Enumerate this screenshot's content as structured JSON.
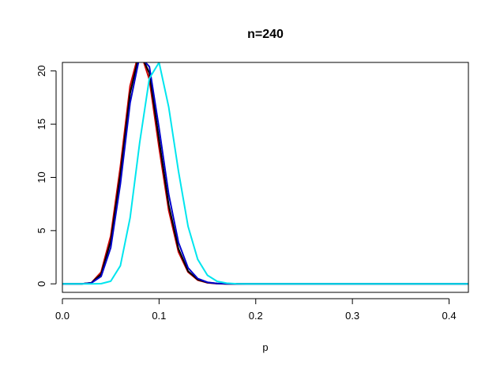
{
  "chart_data": {
    "type": "line",
    "title": "n=240",
    "xlabel": "p",
    "ylabel": "",
    "xlim": [
      0,
      0.42
    ],
    "ylim": [
      -0.8,
      20.8
    ],
    "xticks": [
      0.0,
      0.1,
      0.2,
      0.3,
      0.4
    ],
    "xtick_labels": [
      "0.0",
      "0.1",
      "0.2",
      "0.3",
      "0.4"
    ],
    "yticks": [
      0,
      5,
      10,
      15,
      20
    ],
    "ytick_labels": [
      "0",
      "5",
      "10",
      "15",
      "20"
    ],
    "grid": false,
    "legend": "none",
    "x": [
      0.0,
      0.01,
      0.02,
      0.03,
      0.04,
      0.05,
      0.06,
      0.07,
      0.08,
      0.09,
      0.1,
      0.11,
      0.12,
      0.13,
      0.14,
      0.15,
      0.16,
      0.17,
      0.18,
      0.19,
      0.2,
      0.25,
      0.3,
      0.35,
      0.42
    ],
    "series": [
      {
        "color": "#cc0000",
        "values": [
          0,
          0,
          0,
          0.1,
          1.1,
          4.5,
          11.0,
          18.6,
          22.0,
          19.2,
          12.8,
          6.9,
          3.0,
          1.1,
          0.35,
          0.1,
          0.02,
          0,
          0,
          0,
          0,
          0,
          0,
          0,
          0
        ]
      },
      {
        "color": "#000000",
        "values": [
          0,
          0,
          0,
          0.1,
          0.9,
          4.0,
          10.3,
          17.9,
          21.8,
          19.8,
          13.5,
          7.4,
          3.3,
          1.2,
          0.4,
          0.12,
          0.03,
          0,
          0,
          0,
          0,
          0,
          0,
          0,
          0
        ]
      },
      {
        "color": "#0000cc",
        "values": [
          0,
          0,
          0,
          0.08,
          0.7,
          3.4,
          9.4,
          17.0,
          21.4,
          20.4,
          14.6,
          8.4,
          3.9,
          1.5,
          0.5,
          0.15,
          0.04,
          0.01,
          0,
          0,
          0,
          0,
          0,
          0,
          0
        ]
      },
      {
        "color": "#00e5ee",
        "values": [
          0,
          0,
          0,
          0,
          0.02,
          0.25,
          1.7,
          6.2,
          13.3,
          19.3,
          20.8,
          16.6,
          10.6,
          5.4,
          2.3,
          0.8,
          0.24,
          0.06,
          0.01,
          0,
          0,
          0,
          0,
          0,
          0
        ]
      }
    ]
  }
}
